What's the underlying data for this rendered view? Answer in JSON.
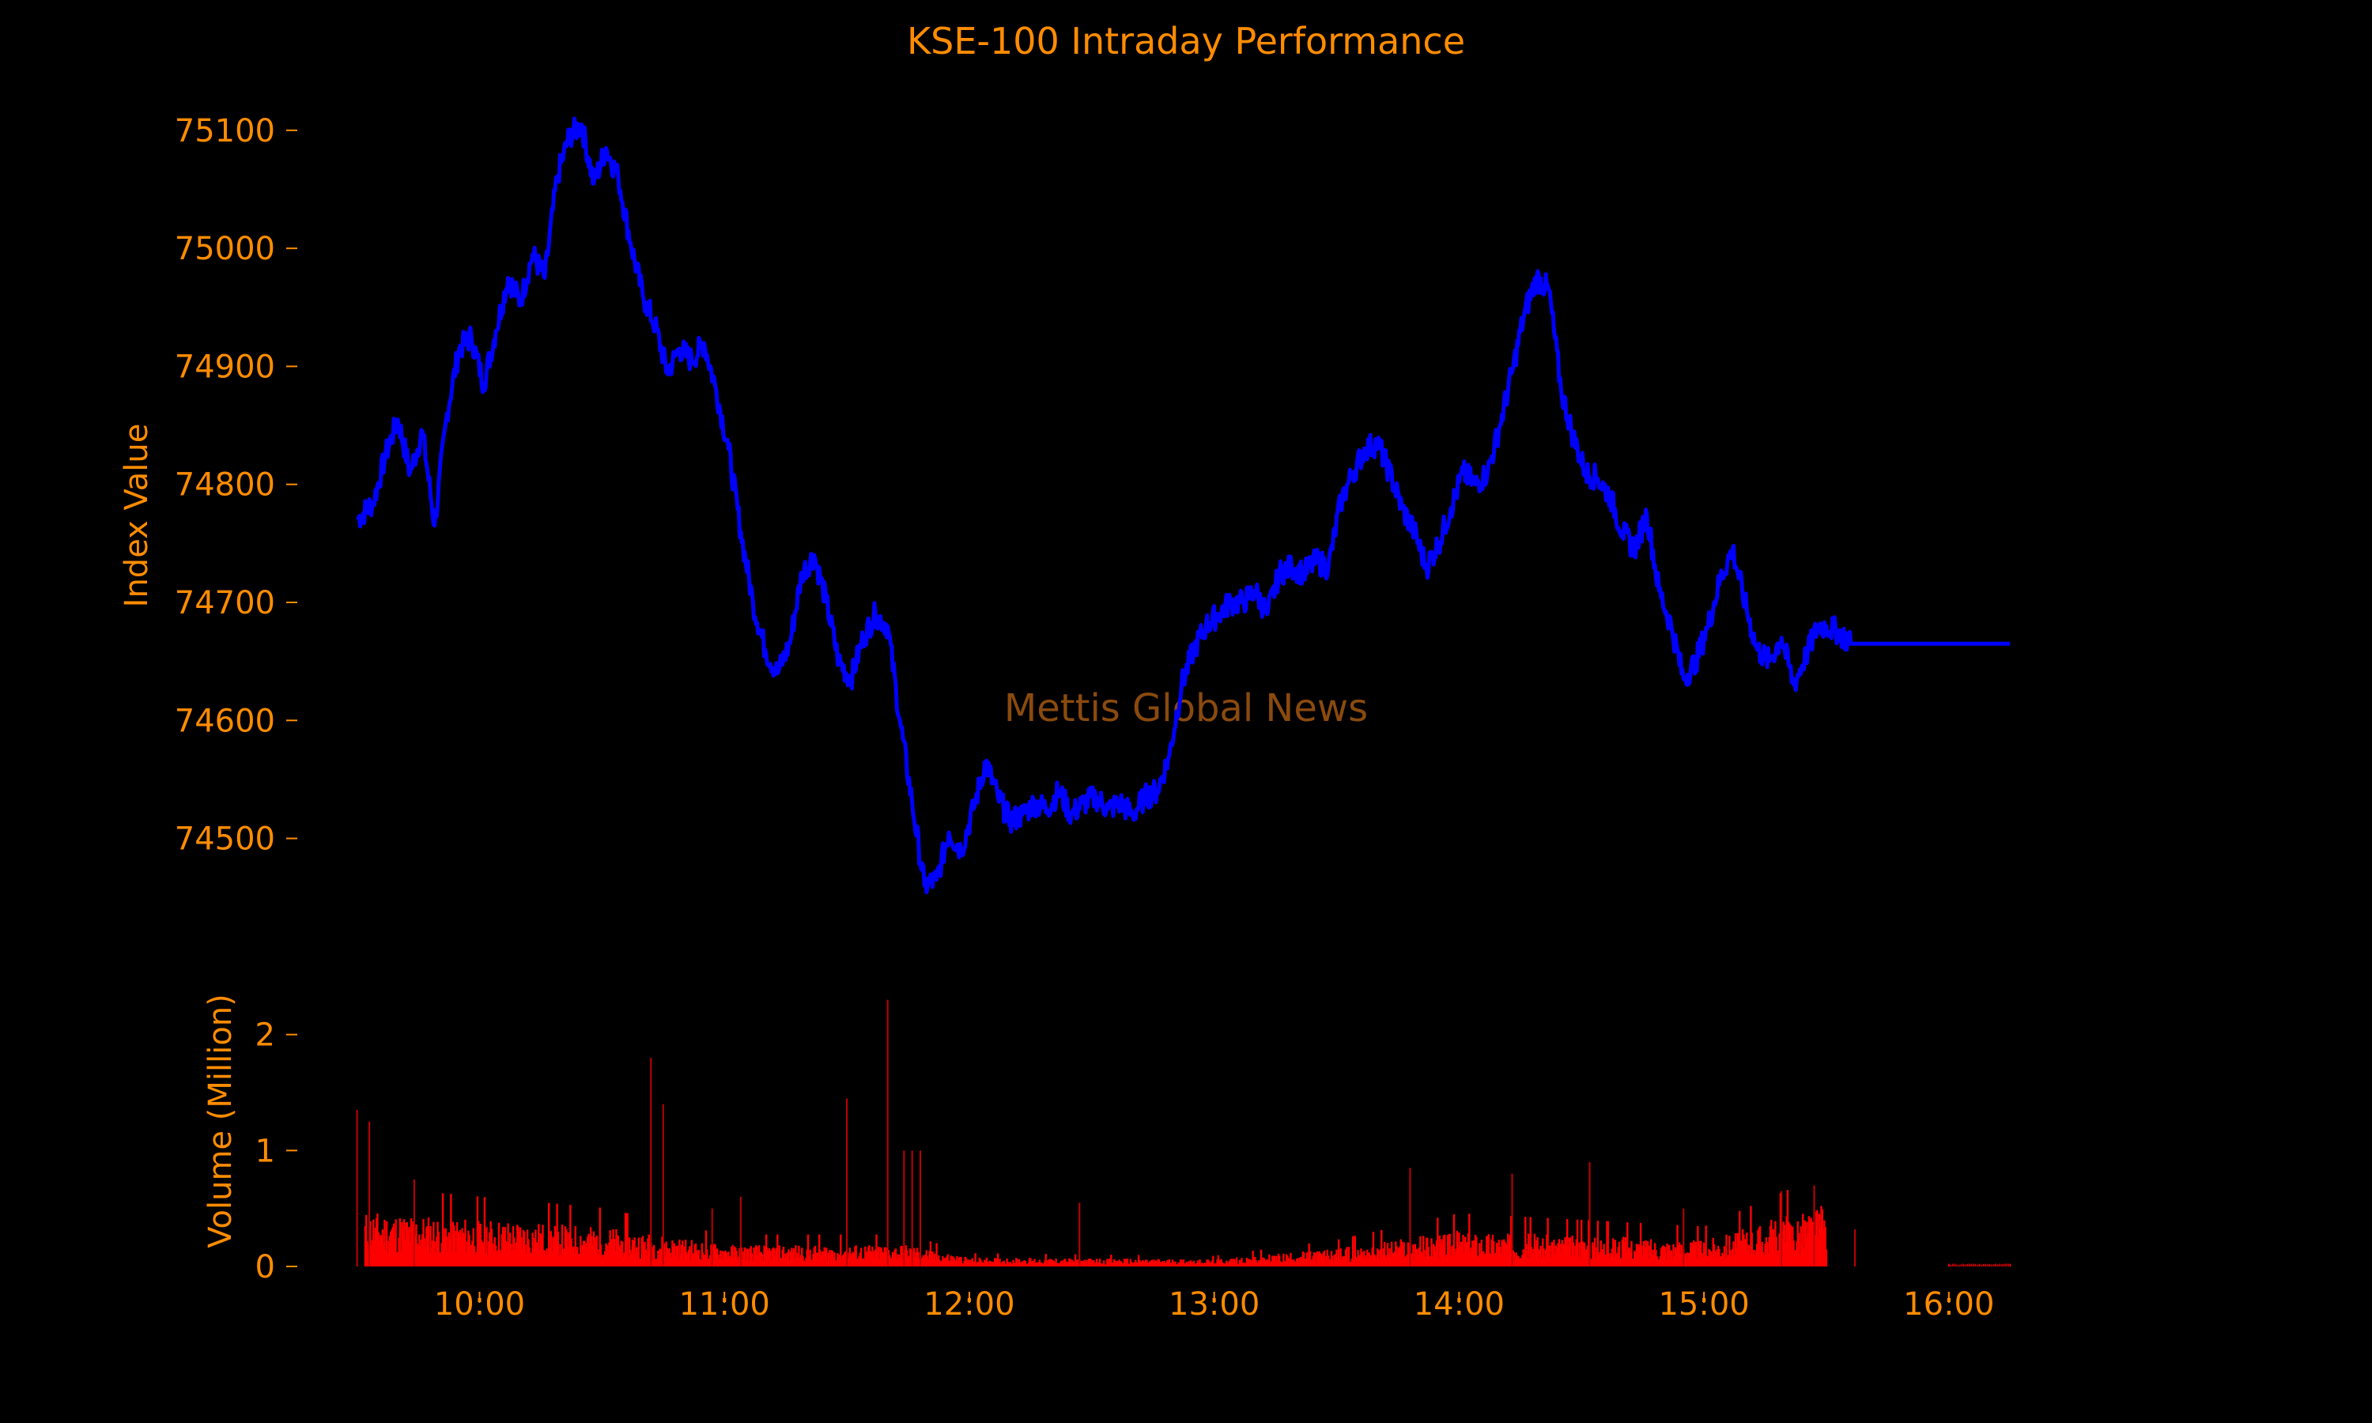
{
  "chart_data": [
    {
      "type": "line",
      "title": "KSE-100 Intraday Performance",
      "ylabel": "Index Value",
      "ylim": [
        74420,
        75120
      ],
      "yticks": [
        74500,
        74600,
        74700,
        74800,
        74900,
        75000,
        75100
      ],
      "ytick_labels": [
        "74500",
        "74600",
        "74700",
        "74800",
        "74900",
        "75000",
        "75100"
      ],
      "watermark": "Mettis Global News",
      "series": [
        {
          "color": "#0000ff",
          "x": [
            "09:30",
            "09:34",
            "09:37",
            "09:40",
            "09:43",
            "09:46",
            "09:49",
            "09:52",
            "09:55",
            "09:58",
            "10:01",
            "10:04",
            "10:07",
            "10:10",
            "10:13",
            "10:16",
            "10:19",
            "10:22",
            "10:25",
            "10:28",
            "10:31",
            "10:34",
            "10:37",
            "10:40",
            "10:43",
            "10:46",
            "10:49",
            "10:52",
            "10:55",
            "10:58",
            "11:01",
            "11:04",
            "11:07",
            "11:10",
            "11:13",
            "11:16",
            "11:19",
            "11:22",
            "11:25",
            "11:28",
            "11:31",
            "11:34",
            "11:37",
            "11:40",
            "11:43",
            "11:46",
            "11:49",
            "11:52",
            "11:55",
            "11:58",
            "12:01",
            "12:04",
            "12:07",
            "12:10",
            "12:13",
            "12:16",
            "12:19",
            "12:22",
            "12:25",
            "12:28",
            "12:31",
            "12:34",
            "12:37",
            "12:40",
            "12:43",
            "12:46",
            "12:49",
            "12:52",
            "12:55",
            "12:58",
            "13:01",
            "13:04",
            "13:07",
            "13:10",
            "13:13",
            "13:16",
            "13:19",
            "13:22",
            "13:25",
            "13:28",
            "13:31",
            "13:34",
            "13:37",
            "13:40",
            "13:43",
            "13:46",
            "13:49",
            "13:52",
            "13:55",
            "13:58",
            "14:01",
            "14:04",
            "14:07",
            "14:10",
            "14:13",
            "14:16",
            "14:19",
            "14:22",
            "14:25",
            "14:28",
            "14:31",
            "14:34",
            "14:37",
            "14:40",
            "14:43",
            "14:46",
            "14:49",
            "14:52",
            "14:55",
            "14:58",
            "15:01",
            "15:04",
            "15:07",
            "15:10",
            "15:13",
            "15:16",
            "15:19",
            "15:22",
            "15:25",
            "15:28",
            "15:30",
            "15:33",
            "15:36",
            "15:40",
            "15:50",
            "16:00",
            "16:10",
            "16:15"
          ],
          "y": [
            74770,
            74785,
            74825,
            74855,
            74810,
            74845,
            74765,
            74860,
            74915,
            74925,
            74885,
            74930,
            74975,
            74955,
            74995,
            74975,
            75060,
            75095,
            75105,
            75055,
            75085,
            75060,
            75005,
            74960,
            74935,
            74895,
            74915,
            74905,
            74920,
            74880,
            74830,
            74760,
            74700,
            74660,
            74640,
            74665,
            74725,
            74740,
            74700,
            74650,
            74635,
            74670,
            74690,
            74680,
            74600,
            74530,
            74460,
            74465,
            74505,
            74490,
            74525,
            74565,
            74535,
            74515,
            74520,
            74530,
            74525,
            74540,
            74520,
            74530,
            74535,
            74525,
            74530,
            74520,
            74535,
            74540,
            74570,
            74630,
            74660,
            74680,
            74690,
            74700,
            74700,
            74710,
            74690,
            74725,
            74730,
            74725,
            74735,
            74730,
            74785,
            74810,
            74830,
            74835,
            74810,
            74780,
            74760,
            74730,
            74750,
            74780,
            74810,
            74800,
            74810,
            74850,
            74895,
            74945,
            74975,
            74965,
            74880,
            74840,
            74810,
            74805,
            74790,
            74760,
            74745,
            74775,
            74710,
            74680,
            74635,
            74650,
            74680,
            74720,
            74745,
            74700,
            74660,
            74650,
            74670,
            74630,
            74655,
            74680,
            74680,
            74675,
            74665,
            74665,
            74665,
            74665,
            74665,
            74665
          ]
        }
      ]
    },
    {
      "type": "bar",
      "ylabel": "Volume (Million)",
      "ylim": [
        0,
        2.4
      ],
      "yticks": [
        0,
        1,
        2
      ],
      "ytick_labels": [
        "0",
        "1",
        "2"
      ],
      "xlabel": "",
      "x_tick_labels": [
        "10:00",
        "11:00",
        "12:00",
        "13:00",
        "14:00",
        "15:00",
        "16:00"
      ],
      "x_ticks_minutes": [
        600,
        660,
        720,
        780,
        840,
        900,
        960
      ],
      "x_range_minutes": [
        560,
        992
      ],
      "bar_color": "#ff0000",
      "series": [
        {
          "name": "Volume",
          "spikes": [
            {
              "t": "09:30",
              "v": 1.35
            },
            {
              "t": "09:33",
              "v": 1.25
            },
            {
              "t": "09:44",
              "v": 0.75
            },
            {
              "t": "10:42",
              "v": 1.8
            },
            {
              "t": "10:45",
              "v": 1.4
            },
            {
              "t": "10:57",
              "v": 0.5
            },
            {
              "t": "11:04",
              "v": 0.6
            },
            {
              "t": "11:30",
              "v": 1.45
            },
            {
              "t": "11:40",
              "v": 2.3
            },
            {
              "t": "11:44",
              "v": 1.0
            },
            {
              "t": "11:46",
              "v": 1.0
            },
            {
              "t": "11:48",
              "v": 1.0
            },
            {
              "t": "12:27",
              "v": 0.55
            },
            {
              "t": "13:48",
              "v": 0.85
            },
            {
              "t": "14:13",
              "v": 0.8
            },
            {
              "t": "14:32",
              "v": 0.9
            },
            {
              "t": "14:55",
              "v": 0.5
            },
            {
              "t": "15:19",
              "v": 0.65
            },
            {
              "t": "15:27",
              "v": 0.7
            }
          ],
          "baseline_profile": [
            {
              "t": "09:33",
              "v": 0.3
            },
            {
              "t": "10:30",
              "v": 0.22
            },
            {
              "t": "11:00",
              "v": 0.12
            },
            {
              "t": "11:45",
              "v": 0.12
            },
            {
              "t": "12:00",
              "v": 0.05
            },
            {
              "t": "13:00",
              "v": 0.04
            },
            {
              "t": "13:30",
              "v": 0.1
            },
            {
              "t": "14:00",
              "v": 0.2
            },
            {
              "t": "15:00",
              "v": 0.15
            },
            {
              "t": "15:30",
              "v": 0.35
            }
          ],
          "end_trades": [
            {
              "t": "15:37",
              "v": 0.32
            },
            {
              "t": "16:00",
              "v": 0.02
            },
            {
              "t": "16:15",
              "v": 0.02
            }
          ]
        }
      ]
    }
  ]
}
